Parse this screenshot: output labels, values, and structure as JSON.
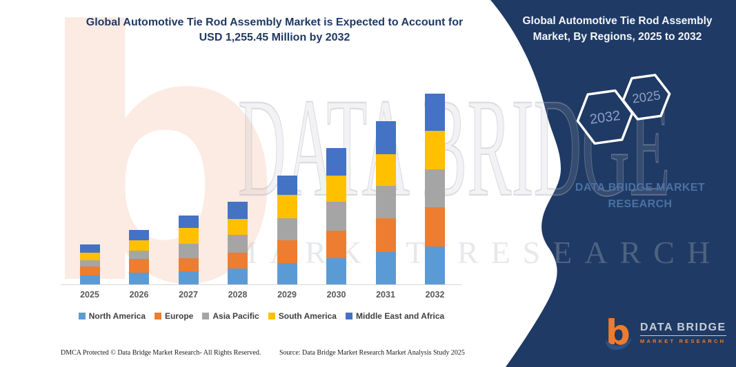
{
  "header": {
    "title_line1": "Global Automotive Tie Rod Assembly Market is Expected to Account for",
    "title_line2": "USD 1,255.45 Million by 2032"
  },
  "panel": {
    "bg_color": "#1f3a64",
    "title_line1": "Global Automotive Tie Rod Assembly",
    "title_line2": "Market, By Regions, 2025 to 2032",
    "hexagon_back_label": "2032",
    "hexagon_front_label": "2025",
    "brand_line1": "DATA BRIDGE MARKET",
    "brand_line2": "RESEARCH"
  },
  "watermark": {
    "line1": "DATA BRIDGE",
    "line2": "MARKET RESEARCH",
    "logo_letter": "b"
  },
  "logo": {
    "name": "DATA BRIDGE",
    "tagline": "MARKET RESEARCH",
    "accent_color": "#ee7b2e",
    "swoosh_color": "#30517f"
  },
  "footer": {
    "left": "DMCA Protected © Data Bridge Market Research-  All Rights Reserved.",
    "source": "Source: Data Bridge Market Research  Market Analysis Study 2025"
  },
  "chart_data": {
    "type": "bar",
    "stacked": true,
    "title": "Global Automotive Tie Rod Assembly Market is Expected to Account for USD 1,255.45 Million by 2032",
    "unit": "USD Million",
    "values_estimated_from_pixels": true,
    "stated_total_2032": 1255.45,
    "categories": [
      "2025",
      "2026",
      "2027",
      "2028",
      "2029",
      "2030",
      "2031",
      "2032"
    ],
    "series": [
      {
        "name": "North America",
        "color": "#5B9BD5",
        "values": [
          57,
          75,
          86,
          106,
          139,
          171,
          211,
          249
        ]
      },
      {
        "name": "Europe",
        "color": "#ED7D31",
        "values": [
          60,
          91,
          85,
          103,
          151,
          184,
          222,
          257
        ]
      },
      {
        "name": "Asia Pacific",
        "color": "#A5A5A5",
        "values": [
          42,
          57,
          98,
          116,
          145,
          186,
          213,
          249
        ]
      },
      {
        "name": "South America",
        "color": "#FFC000",
        "values": [
          48,
          68,
          101,
          106,
          154,
          175,
          210,
          252
        ]
      },
      {
        "name": "Middle East and Africa",
        "color": "#4472C4",
        "values": [
          57,
          67,
          83,
          110,
          125,
          180,
          217,
          248.45
        ]
      }
    ],
    "estimated_totals": [
      264,
      358,
      453,
      541,
      714,
      896,
      1073,
      1255.45
    ],
    "legend_position": "bottom",
    "gridlines": false,
    "value_axis_hidden": true
  }
}
